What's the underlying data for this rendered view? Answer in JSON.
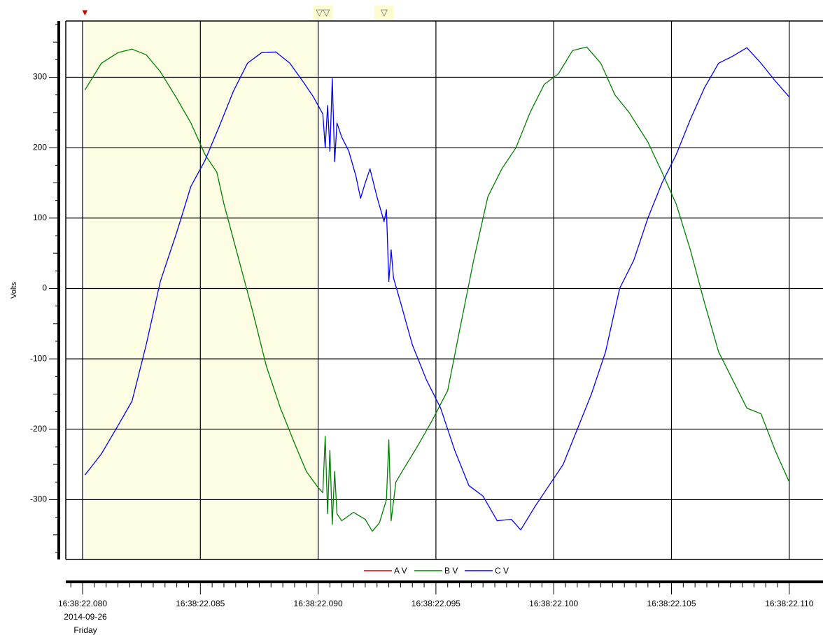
{
  "chart_data": {
    "type": "line",
    "ylabel": "Volts",
    "ylim": [
      -385,
      380
    ],
    "xlim": [
      "16:38:22.0793",
      "16:38:22.1100"
    ],
    "y_ticks": [
      300,
      200,
      100,
      0,
      -100,
      -200,
      -300
    ],
    "y_tick_labels": [
      "300",
      "200",
      "100",
      "0",
      "-100",
      "-200",
      "-300"
    ],
    "x_ticks": [
      {
        "t": "16:38:22.080",
        "label": "16:38:22.080",
        "sub1": "2014-09-26",
        "sub2": "Friday"
      },
      {
        "t": "16:38:22.085",
        "label": "16:38:22.085"
      },
      {
        "t": "16:38:22.090",
        "label": "16:38:22.090"
      },
      {
        "t": "16:38:22.095",
        "label": "16:38:22.095"
      },
      {
        "t": "16:38:22.100",
        "label": "16:38:22.100"
      },
      {
        "t": "16:38:22.105",
        "label": "16:38:22.105"
      },
      {
        "t": "16:38:22.110",
        "label": "16:38:22.110"
      }
    ],
    "grid": true,
    "legend": {
      "position": "bottom-center",
      "entries": [
        {
          "name": "A V",
          "color": "#e00000"
        },
        {
          "name": "B V",
          "color": "#008000"
        },
        {
          "name": "C V",
          "color": "#0000ff"
        }
      ]
    },
    "highlight_region": {
      "start": "16:38:22.0801",
      "end": "16:38:22.0900",
      "color": "#fdfde3"
    },
    "markers": [
      {
        "t": "16:38:22.0801",
        "symbol": "▼",
        "color": "#cc0000"
      },
      {
        "t": "16:38:22.0902",
        "symbol": "▽▽",
        "color": "#666666"
      },
      {
        "t": "16:38:22.0928",
        "symbol": "▽",
        "color": "#666666"
      }
    ],
    "series": [
      {
        "name": "A V",
        "color": "#e00000",
        "points": []
      },
      {
        "name": "B V",
        "color": "#008000",
        "points": [
          [
            "16:38:22.0801",
            282
          ],
          [
            "16:38:22.0808",
            320
          ],
          [
            "16:38:22.0815",
            335
          ],
          [
            "16:38:22.0821",
            340
          ],
          [
            "16:38:22.0827",
            332
          ],
          [
            "16:38:22.0833",
            308
          ],
          [
            "16:38:22.0840",
            270
          ],
          [
            "16:38:22.0846",
            235
          ],
          [
            "16:38:22.0852",
            190
          ],
          [
            "16:38:22.0857",
            165
          ],
          [
            "16:38:22.0860",
            120
          ],
          [
            "16:38:22.0866",
            45
          ],
          [
            "16:38:22.0872",
            -30
          ],
          [
            "16:38:22.0878",
            -110
          ],
          [
            "16:38:22.0884",
            -170
          ],
          [
            "16:38:22.0890",
            -220
          ],
          [
            "16:38:22.0895",
            -260
          ],
          [
            "16:38:22.0900",
            -283
          ],
          [
            "16:38:22.0902",
            -290
          ],
          [
            "16:38:22.0903",
            -210
          ],
          [
            "16:38:22.0904",
            -320
          ],
          [
            "16:38:22.0905",
            -230
          ],
          [
            "16:38:22.0906",
            -335
          ],
          [
            "16:38:22.0907",
            -260
          ],
          [
            "16:38:22.0908",
            -320
          ],
          [
            "16:38:22.0910",
            -330
          ],
          [
            "16:38:22.0915",
            -318
          ],
          [
            "16:38:22.0920",
            -328
          ],
          [
            "16:38:22.0923",
            -345
          ],
          [
            "16:38:22.0926",
            -333
          ],
          [
            "16:38:22.0929",
            -300
          ],
          [
            "16:38:22.0930",
            -215
          ],
          [
            "16:38:22.0931",
            -330
          ],
          [
            "16:38:22.0933",
            -275
          ],
          [
            "16:38:22.0936",
            -258
          ],
          [
            "16:38:22.0942",
            -225
          ],
          [
            "16:38:22.0948",
            -190
          ],
          [
            "16:38:22.0955",
            -145
          ],
          [
            "16:38:22.0960",
            -60
          ],
          [
            "16:38:22.0966",
            40
          ],
          [
            "16:38:22.0972",
            130
          ],
          [
            "16:38:22.0978",
            170
          ],
          [
            "16:38:22.0984",
            200
          ],
          [
            "16:38:22.0990",
            250
          ],
          [
            "16:38:22.0996",
            290
          ],
          [
            "16:38:22.1002",
            305
          ],
          [
            "16:38:22.1008",
            338
          ],
          [
            "16:38:22.1014",
            343
          ],
          [
            "16:38:22.1020",
            320
          ],
          [
            "16:38:22.1026",
            275
          ],
          [
            "16:38:22.1032",
            250
          ],
          [
            "16:38:22.1040",
            208
          ],
          [
            "16:38:22.1046",
            165
          ],
          [
            "16:38:22.1052",
            120
          ],
          [
            "16:38:22.1058",
            55
          ],
          [
            "16:38:22.1064",
            -20
          ],
          [
            "16:38:22.1070",
            -90
          ],
          [
            "16:38:22.1076",
            -130
          ],
          [
            "16:38:22.1082",
            -170
          ],
          [
            "16:38:22.1088",
            -178
          ],
          [
            "16:38:22.1094",
            -230
          ],
          [
            "16:38:22.1100",
            -275
          ]
        ]
      },
      {
        "name": "C V",
        "color": "#0000ff",
        "points": [
          [
            "16:38:22.0801",
            -265
          ],
          [
            "16:38:22.0808",
            -235
          ],
          [
            "16:38:22.0815",
            -195
          ],
          [
            "16:38:22.0821",
            -160
          ],
          [
            "16:38:22.0827",
            -80
          ],
          [
            "16:38:22.0833",
            10
          ],
          [
            "16:38:22.0840",
            80
          ],
          [
            "16:38:22.0846",
            145
          ],
          [
            "16:38:22.0852",
            182
          ],
          [
            "16:38:22.0858",
            230
          ],
          [
            "16:38:22.0864",
            280
          ],
          [
            "16:38:22.0870",
            320
          ],
          [
            "16:38:22.0876",
            335
          ],
          [
            "16:38:22.0882",
            336
          ],
          [
            "16:38:22.0888",
            320
          ],
          [
            "16:38:22.0894",
            292
          ],
          [
            "16:38:22.0898",
            272
          ],
          [
            "16:38:22.0902",
            248
          ],
          [
            "16:38:22.0903",
            200
          ],
          [
            "16:38:22.0904",
            260
          ],
          [
            "16:38:22.0905",
            195
          ],
          [
            "16:38:22.0906",
            298
          ],
          [
            "16:38:22.0907",
            180
          ],
          [
            "16:38:22.0908",
            235
          ],
          [
            "16:38:22.0910",
            215
          ],
          [
            "16:38:22.0913",
            195
          ],
          [
            "16:38:22.0916",
            160
          ],
          [
            "16:38:22.0918",
            128
          ],
          [
            "16:38:22.0920",
            150
          ],
          [
            "16:38:22.0922",
            170
          ],
          [
            "16:38:22.0925",
            130
          ],
          [
            "16:38:22.0928",
            95
          ],
          [
            "16:38:22.0929",
            112
          ],
          [
            "16:38:22.0930",
            10
          ],
          [
            "16:38:22.0931",
            55
          ],
          [
            "16:38:22.0932",
            15
          ],
          [
            "16:38:22.0935",
            -20
          ],
          [
            "16:38:22.0940",
            -80
          ],
          [
            "16:38:22.0946",
            -130
          ],
          [
            "16:38:22.0952",
            -170
          ],
          [
            "16:38:22.0958",
            -230
          ],
          [
            "16:38:22.0964",
            -280
          ],
          [
            "16:38:22.0970",
            -295
          ],
          [
            "16:38:22.0976",
            -330
          ],
          [
            "16:38:22.0982",
            -328
          ],
          [
            "16:38:22.0986",
            -343
          ],
          [
            "16:38:22.0992",
            -310
          ],
          [
            "16:38:22.0998",
            -280
          ],
          [
            "16:38:22.1004",
            -250
          ],
          [
            "16:38:22.1010",
            -200
          ],
          [
            "16:38:22.1016",
            -150
          ],
          [
            "16:38:22.1022",
            -90
          ],
          [
            "16:38:22.1028",
            0
          ],
          [
            "16:38:22.1034",
            40
          ],
          [
            "16:38:22.1040",
            100
          ],
          [
            "16:38:22.1046",
            150
          ],
          [
            "16:38:22.1052",
            190
          ],
          [
            "16:38:22.1058",
            240
          ],
          [
            "16:38:22.1064",
            285
          ],
          [
            "16:38:22.1070",
            320
          ],
          [
            "16:38:22.1076",
            330
          ],
          [
            "16:38:22.1082",
            342
          ],
          [
            "16:38:22.1088",
            320
          ],
          [
            "16:38:22.1094",
            295
          ],
          [
            "16:38:22.1100",
            272
          ]
        ]
      }
    ]
  }
}
